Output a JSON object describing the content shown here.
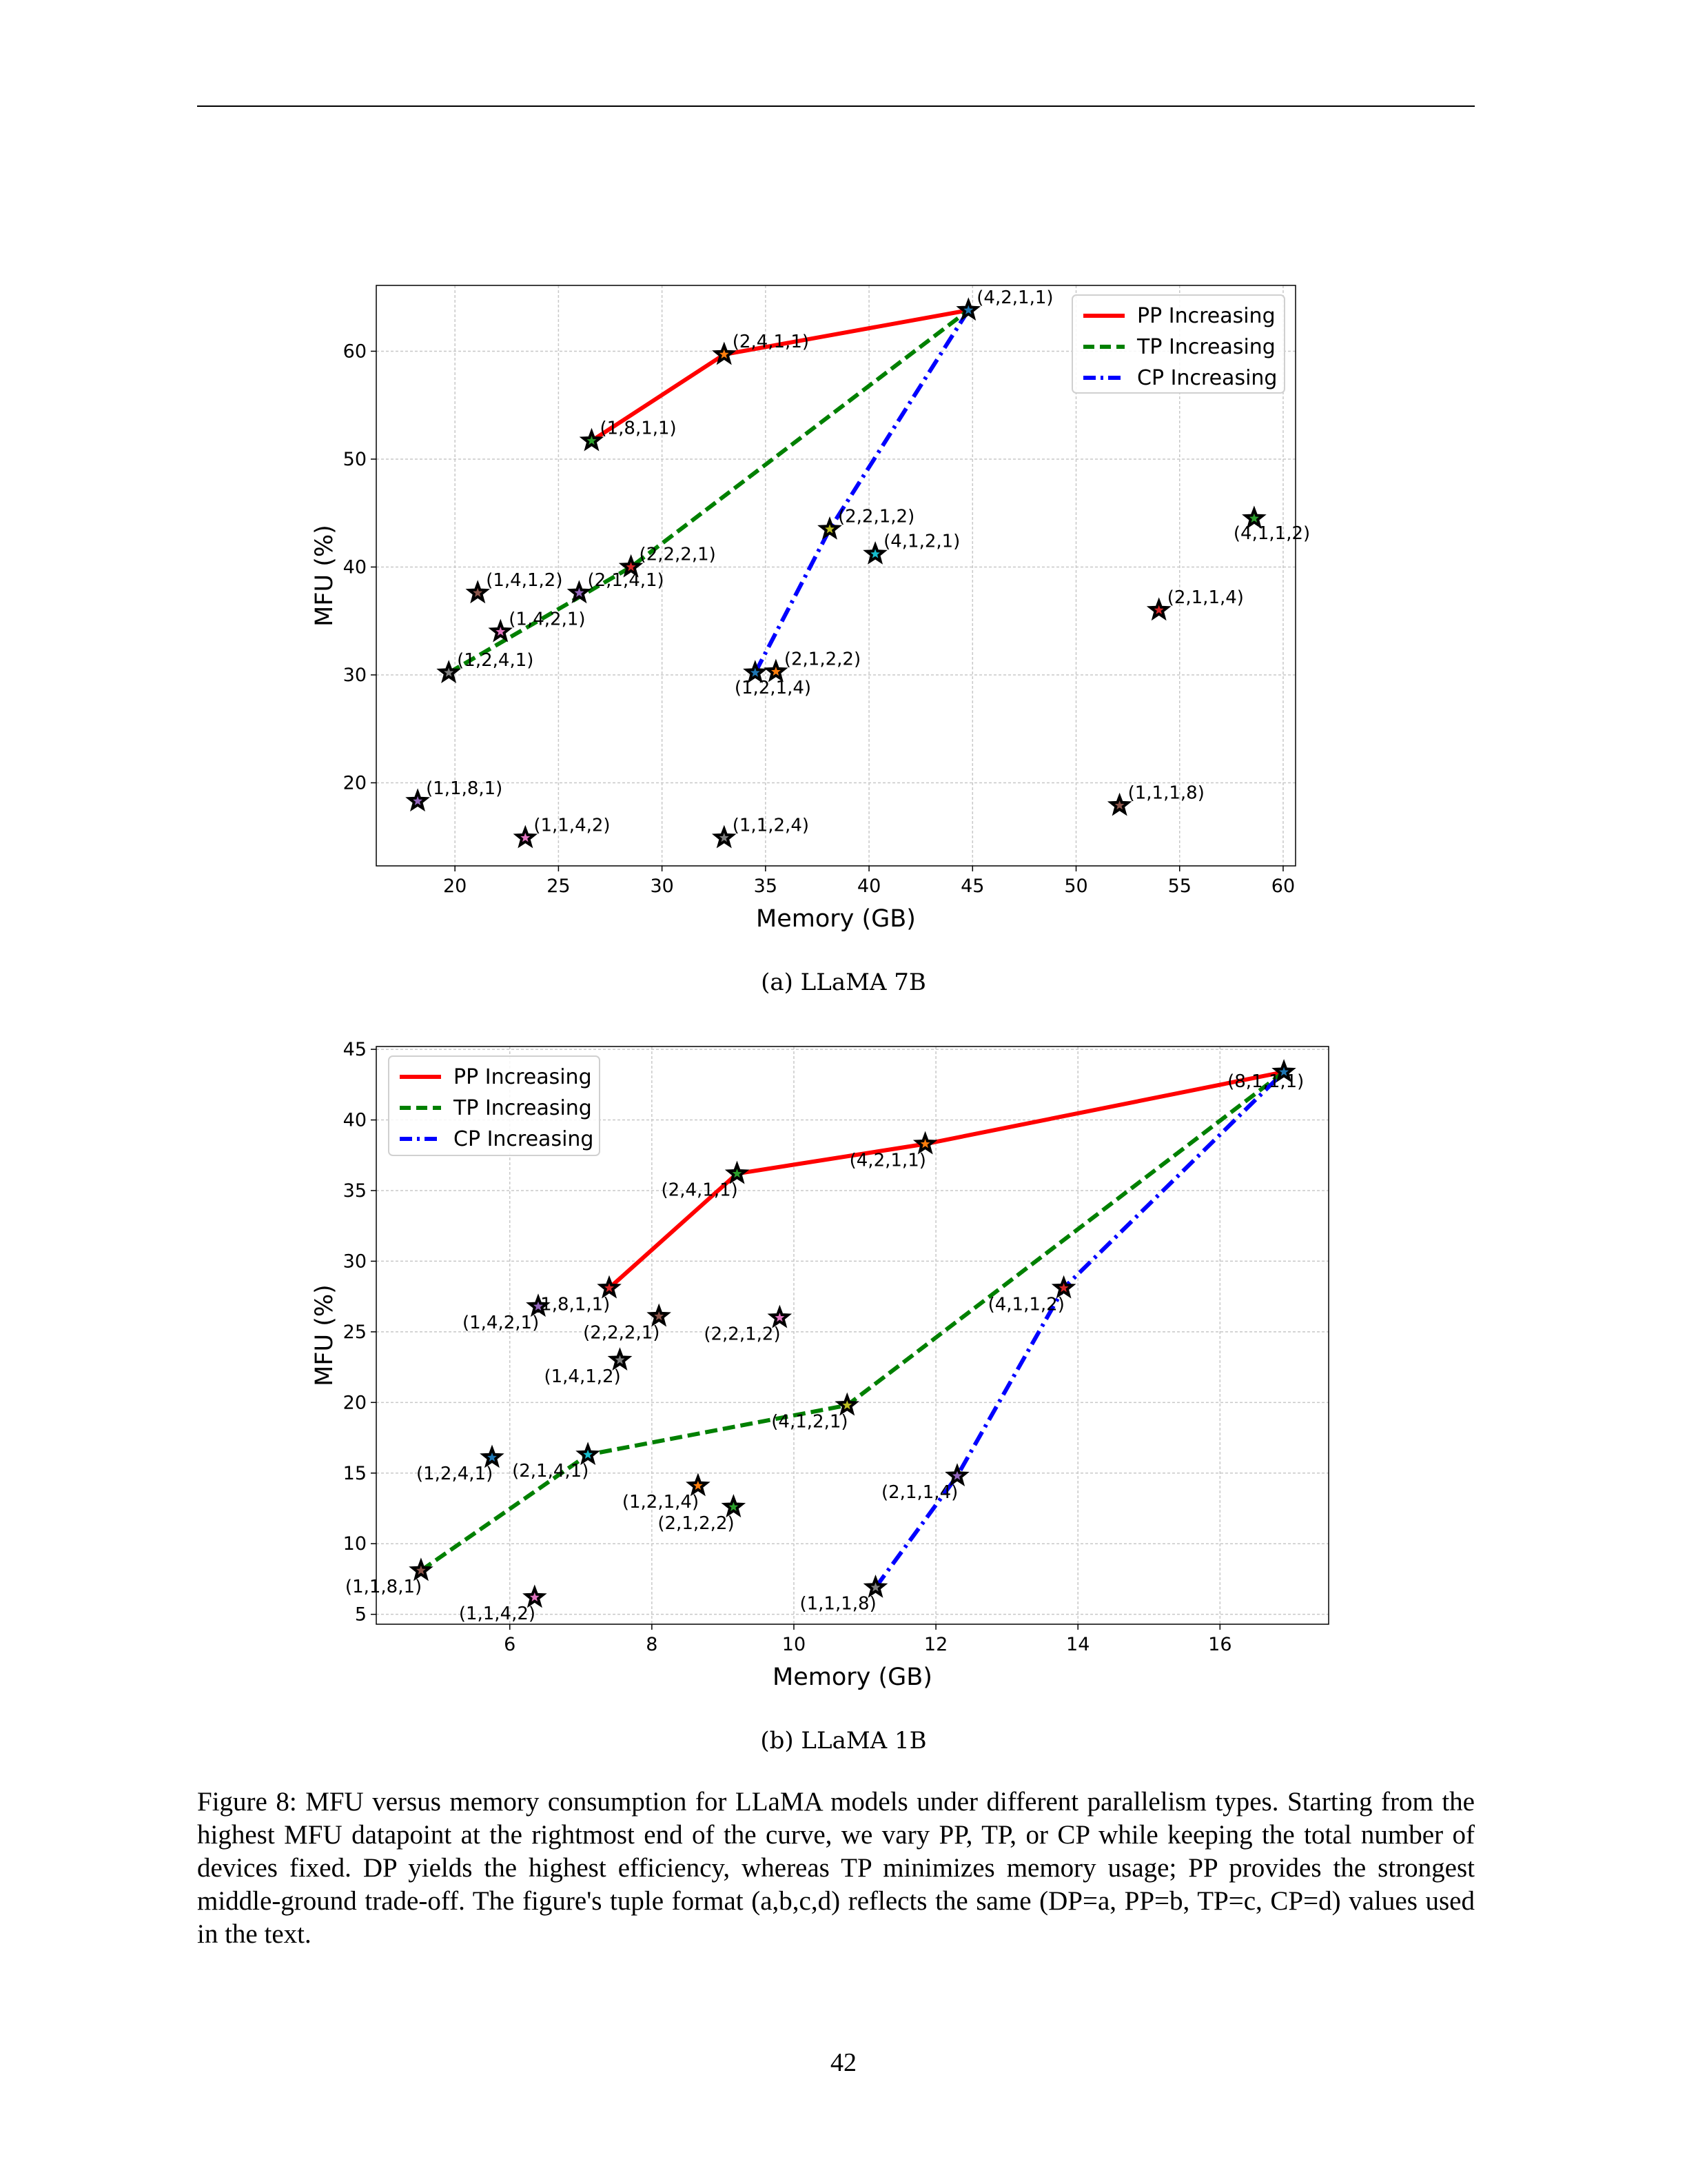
{
  "figure": {
    "caption": "Figure 8: MFU versus memory consumption for LLaMA models under different parallelism types. Starting from the highest MFU datapoint at the rightmost end of the curve, we vary PP, TP, or CP while keeping the total number of devices fixed. DP yields the highest efficiency, whereas TP minimizes memory usage; PP provides the strongest middle-ground trade-off. The figure's tuple format (a,b,c,d) reflects the same (DP=a, PP=b, TP=c, CP=d) values used in the text.",
    "page_number": "42"
  },
  "chart_data": [
    {
      "type": "scatter",
      "subcaption": "(a) LLaMA 7B",
      "xlabel": "Memory (GB)",
      "ylabel": "MFU (%)",
      "xlim": [
        16.2,
        60.6
      ],
      "ylim": [
        12.3,
        66.1
      ],
      "xticks": [
        20,
        25,
        30,
        35,
        40,
        45,
        50,
        55,
        60
      ],
      "yticks": [
        20,
        30,
        40,
        50,
        60
      ],
      "grid": true,
      "legend_position": "top-right",
      "points": [
        {
          "label": "(4,2,1,1)",
          "x": 44.8,
          "y": 63.8
        },
        {
          "label": "(2,4,1,1)",
          "x": 33.0,
          "y": 59.7
        },
        {
          "label": "(1,8,1,1)",
          "x": 26.6,
          "y": 51.7
        },
        {
          "label": "(2,2,2,1)",
          "x": 28.5,
          "y": 40.0
        },
        {
          "label": "(2,1,4,1)",
          "x": 26.0,
          "y": 37.6
        },
        {
          "label": "(1,4,1,2)",
          "x": 21.1,
          "y": 37.6
        },
        {
          "label": "(1,4,2,1)",
          "x": 22.2,
          "y": 34.0
        },
        {
          "label": "(1,2,4,1)",
          "x": 19.7,
          "y": 30.2
        },
        {
          "label": "(2,2,1,2)",
          "x": 38.1,
          "y": 43.5
        },
        {
          "label": "(4,1,2,1)",
          "x": 40.3,
          "y": 41.2
        },
        {
          "label": "(1,2,1,4)",
          "x": 34.5,
          "y": 30.2
        },
        {
          "label": "(2,1,2,2)",
          "x": 35.5,
          "y": 30.3
        },
        {
          "label": "(4,1,1,2)",
          "x": 58.6,
          "y": 44.5
        },
        {
          "label": "(2,1,1,4)",
          "x": 54.0,
          "y": 36.0
        },
        {
          "label": "(1,1,8,1)",
          "x": 18.2,
          "y": 18.3
        },
        {
          "label": "(1,1,1,8)",
          "x": 52.1,
          "y": 17.9
        },
        {
          "label": "(1,1,4,2)",
          "x": 23.4,
          "y": 14.9
        },
        {
          "label": "(1,1,2,4)",
          "x": 33.0,
          "y": 14.9
        }
      ],
      "series": [
        {
          "name": "PP Increasing",
          "color": "#ff0000",
          "style": "solid",
          "points": [
            "(1,8,1,1)",
            "(2,4,1,1)",
            "(4,2,1,1)"
          ]
        },
        {
          "name": "TP Increasing",
          "color": "#008000",
          "style": "dashed",
          "points": [
            "(1,2,4,1)",
            "(2,2,2,1)",
            "(4,2,1,1)"
          ]
        },
        {
          "name": "CP Increasing",
          "color": "#0000ff",
          "style": "dashdot",
          "points": [
            "(1,2,1,4)",
            "(2,2,1,2)",
            "(4,2,1,1)"
          ]
        }
      ]
    },
    {
      "type": "scatter",
      "subcaption": "(b) LLaMA 1B",
      "xlabel": "Memory (GB)",
      "ylabel": "MFU (%)",
      "xlim": [
        4.12,
        17.53
      ],
      "ylim": [
        4.3,
        45.2
      ],
      "xticks": [
        6,
        8,
        10,
        12,
        14,
        16
      ],
      "yticks": [
        5,
        10,
        15,
        20,
        25,
        30,
        35,
        40,
        45
      ],
      "grid": true,
      "legend_position": "top-left",
      "points": [
        {
          "label": "(8,1,1,1)",
          "x": 16.9,
          "y": 43.4
        },
        {
          "label": "(4,2,1,1)",
          "x": 11.85,
          "y": 38.3
        },
        {
          "label": "(2,4,1,1)",
          "x": 9.2,
          "y": 36.2
        },
        {
          "label": "(1,8,1,1)",
          "x": 7.4,
          "y": 28.1
        },
        {
          "label": "(1,4,2,1)",
          "x": 6.4,
          "y": 26.8
        },
        {
          "label": "(2,2,2,1)",
          "x": 8.1,
          "y": 26.1
        },
        {
          "label": "(2,2,1,2)",
          "x": 9.8,
          "y": 26.0
        },
        {
          "label": "(1,4,1,2)",
          "x": 7.55,
          "y": 23.0
        },
        {
          "label": "(4,1,2,1)",
          "x": 10.75,
          "y": 19.8
        },
        {
          "label": "(2,1,4,1)",
          "x": 7.1,
          "y": 16.3
        },
        {
          "label": "(1,2,4,1)",
          "x": 5.75,
          "y": 16.1
        },
        {
          "label": "(1,2,1,4)",
          "x": 8.65,
          "y": 14.1
        },
        {
          "label": "(2,1,2,2)",
          "x": 9.15,
          "y": 12.6
        },
        {
          "label": "(4,1,1,2)",
          "x": 13.8,
          "y": 28.1
        },
        {
          "label": "(2,1,1,4)",
          "x": 12.3,
          "y": 14.8
        },
        {
          "label": "(1,1,8,1)",
          "x": 4.75,
          "y": 8.1
        },
        {
          "label": "(1,1,4,2)",
          "x": 6.35,
          "y": 6.2
        },
        {
          "label": "(1,1,1,8)",
          "x": 11.15,
          "y": 6.9
        }
      ],
      "series": [
        {
          "name": "PP Increasing",
          "color": "#ff0000",
          "style": "solid",
          "points": [
            "(1,8,1,1)",
            "(2,4,1,1)",
            "(4,2,1,1)",
            "(8,1,1,1)"
          ]
        },
        {
          "name": "TP Increasing",
          "color": "#008000",
          "style": "dashed",
          "points": [
            "(1,1,8,1)",
            "(2,1,4,1)",
            "(4,1,2,1)",
            "(8,1,1,1)"
          ]
        },
        {
          "name": "CP Increasing",
          "color": "#0000ff",
          "style": "dashdot",
          "points": [
            "(1,1,1,8)",
            "(2,1,1,4)",
            "(4,1,1,2)",
            "(8,1,1,1)"
          ]
        }
      ]
    }
  ]
}
